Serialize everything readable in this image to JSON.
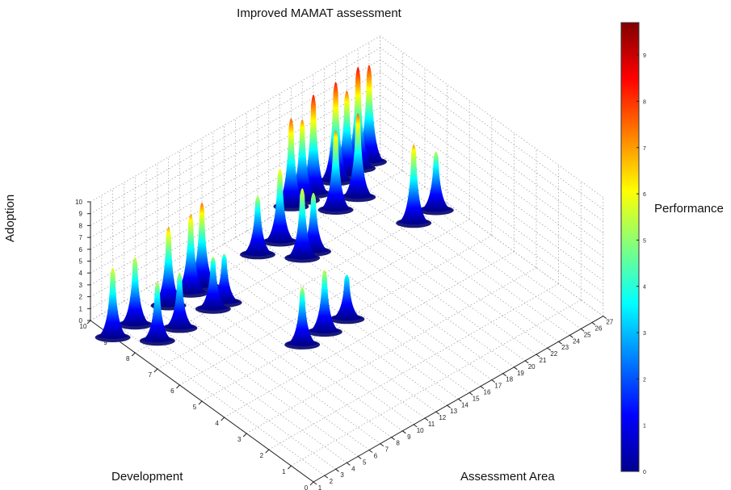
{
  "chart_data": {
    "type": "surface",
    "title": "Improved MAMAT assessment",
    "xlabel": "Development",
    "ylabel": "Assessment Area",
    "zlabel": "Adoption",
    "colorbar_label": "Performance",
    "xlim": [
      0,
      10
    ],
    "ylim": [
      1,
      27
    ],
    "zlim": [
      0,
      10
    ],
    "clim": [
      0,
      9.7
    ],
    "x_ticks": [
      "0",
      "1",
      "2",
      "3",
      "4",
      "5",
      "6",
      "7",
      "8",
      "9",
      "10"
    ],
    "y_ticks": [
      "1",
      "2",
      "3",
      "4",
      "5",
      "6",
      "7",
      "8",
      "9",
      "10",
      "11",
      "12",
      "13",
      "14",
      "15",
      "16",
      "17",
      "18",
      "19",
      "20",
      "21",
      "22",
      "23",
      "24",
      "25",
      "26",
      "27"
    ],
    "z_ticks": [
      "0",
      "1",
      "2",
      "3",
      "4",
      "5",
      "6",
      "7",
      "8",
      "9",
      "10"
    ],
    "cb_ticks": [
      "0",
      "1",
      "2",
      "3",
      "4",
      "5",
      "6",
      "7",
      "8",
      "9"
    ],
    "colormap": "jet",
    "peaks": [
      {
        "development": 9,
        "area": 1,
        "value": 6.3
      },
      {
        "development": 9,
        "area": 3,
        "value": 6.1
      },
      {
        "development": 8,
        "area": 3,
        "value": 5.3
      },
      {
        "development": 8,
        "area": 5,
        "value": 5.0
      },
      {
        "development": 9,
        "area": 6,
        "value": 7.1
      },
      {
        "development": 9,
        "area": 8,
        "value": 7.1
      },
      {
        "development": 9,
        "area": 9,
        "value": 7.6
      },
      {
        "development": 8,
        "area": 8,
        "value": 4.7
      },
      {
        "development": 8,
        "area": 9,
        "value": 4.4
      },
      {
        "development": 5,
        "area": 10,
        "value": 5.2
      },
      {
        "development": 5,
        "area": 12,
        "value": 5.6
      },
      {
        "development": 5,
        "area": 14,
        "value": 4.0
      },
      {
        "development": 9,
        "area": 14,
        "value": 5.3
      },
      {
        "development": 9,
        "area": 16,
        "value": 6.6
      },
      {
        "development": 8,
        "area": 16,
        "value": 6.3
      },
      {
        "development": 8,
        "area": 17,
        "value": 5.3
      },
      {
        "development": 10,
        "area": 19,
        "value": 8.0
      },
      {
        "development": 10,
        "area": 20,
        "value": 7.3
      },
      {
        "development": 10,
        "area": 21,
        "value": 9.0
      },
      {
        "development": 10,
        "area": 23,
        "value": 9.0
      },
      {
        "development": 10,
        "area": 24,
        "value": 7.6
      },
      {
        "development": 10,
        "area": 25,
        "value": 9.2
      },
      {
        "development": 10,
        "area": 26,
        "value": 8.8
      },
      {
        "development": 9,
        "area": 21,
        "value": 7.2
      },
      {
        "development": 9,
        "area": 23,
        "value": 7.6
      },
      {
        "development": 7,
        "area": 24,
        "value": 7.1
      },
      {
        "development": 7,
        "area": 26,
        "value": 5.3
      }
    ]
  }
}
